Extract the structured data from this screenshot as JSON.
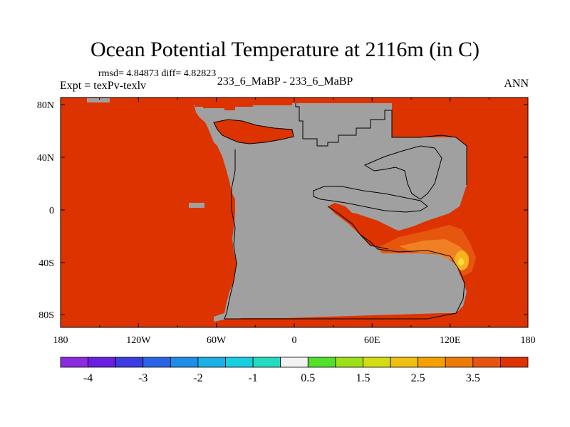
{
  "title": "Ocean Potential Temperature at 2116m (in C)",
  "stats": "rmsd= 4.84873 diff= 4.82823",
  "left_label": "Expt = texPv-texlv",
  "center_label": "233_6_MaBP - 233_6_MaBP",
  "right_label": "ANN",
  "colors": {
    "ocean": "#dd3300",
    "land": "#a0a0a0",
    "anomaly_outer": "#e6560e",
    "anomaly_mid": "#f08024",
    "anomaly_core": "#f8b41e",
    "anomaly_peak": "#fde040",
    "coastline": "#000000"
  },
  "map": {
    "x_ticks": [
      "180",
      "120W",
      "60W",
      "0",
      "60E",
      "120E",
      "180"
    ],
    "y_ticks": [
      "80N",
      "40N",
      "0",
      "40S",
      "80S"
    ]
  },
  "colorbar": {
    "colors": [
      "#8a2be2",
      "#6a1fe0",
      "#3c3ce0",
      "#2a64e6",
      "#1c8ee8",
      "#1ab0e6",
      "#18cfe0",
      "#22dcc0",
      "#f2f2f2",
      "#52e02a",
      "#9ce018",
      "#d4dc14",
      "#f0c010",
      "#f4a000",
      "#ee7a06",
      "#e65410",
      "#dd3300"
    ],
    "labels": [
      "-4",
      "-3",
      "-2",
      "-1",
      "0.5",
      "1.5",
      "2.5",
      "3.5"
    ]
  }
}
